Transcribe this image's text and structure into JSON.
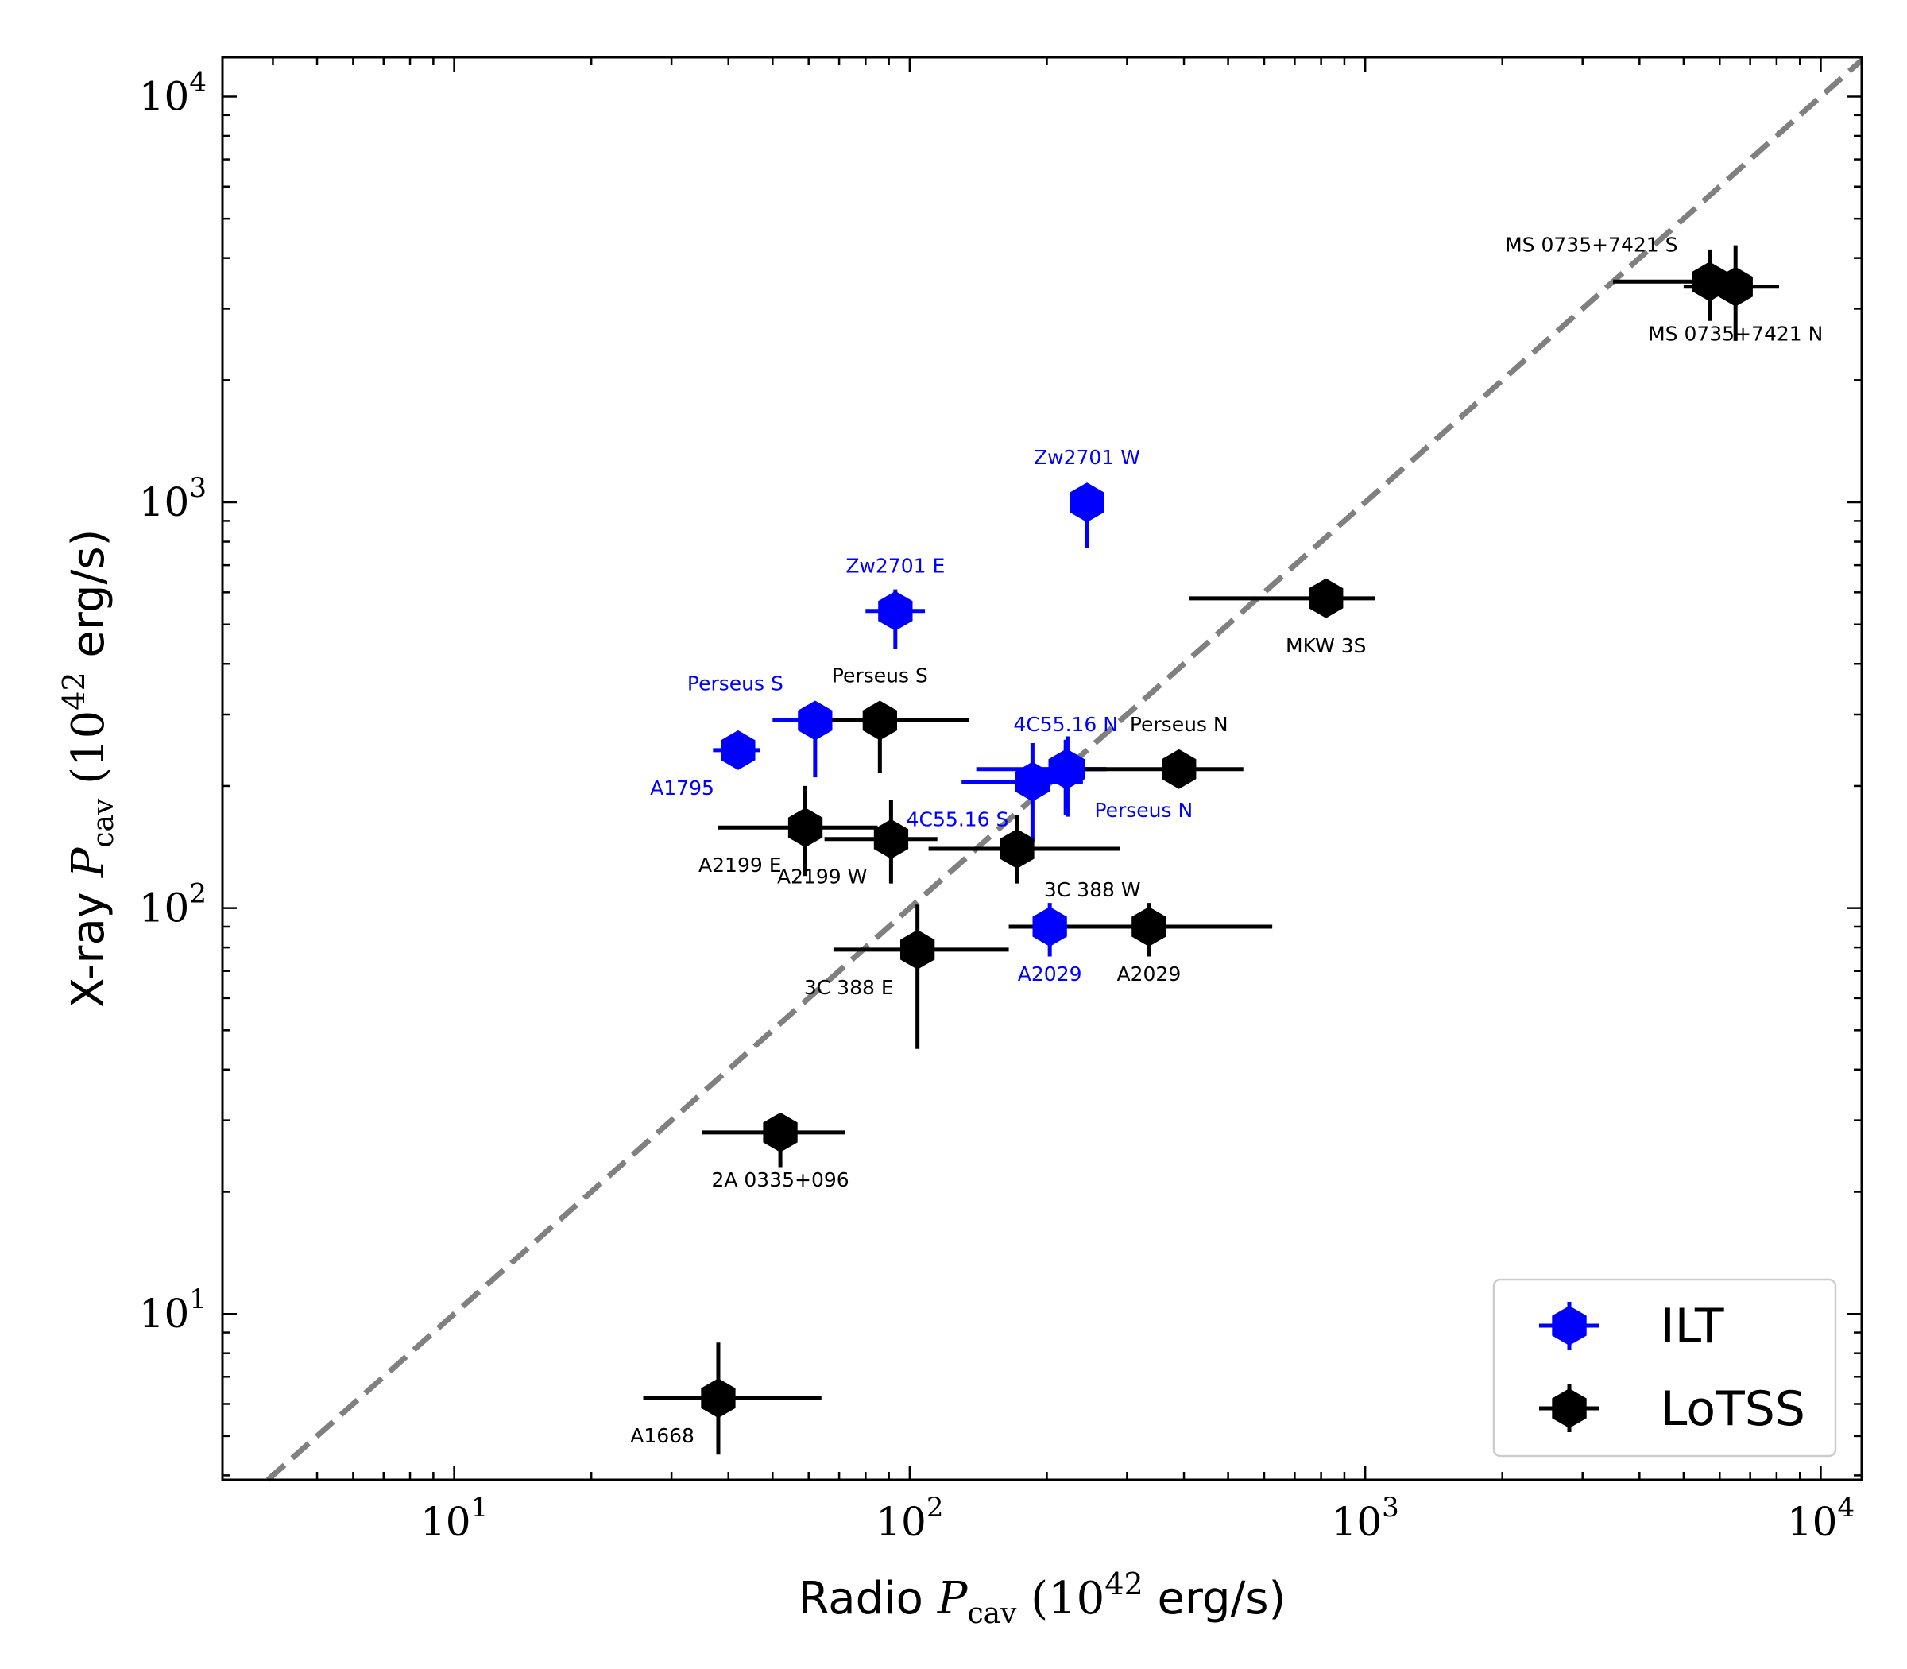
{
  "chart_data": {
    "type": "scatter",
    "xlabel": {
      "prefix": "Radio ",
      "symbol": "P",
      "subscript": "cav",
      "unit_open": " (10",
      "unit_exp": "42",
      "unit_close": " erg/s)"
    },
    "ylabel": {
      "prefix": "X-ray ",
      "symbol": "P",
      "subscript": "cav",
      "unit_open": " (10",
      "unit_exp": "42",
      "unit_close": " erg/s)"
    },
    "x_scale": "log",
    "y_scale": "log",
    "xlim": [
      3.1,
      12300
    ],
    "ylim": [
      3.9,
      12500
    ],
    "x_ticks": [
      {
        "value": 10,
        "base": "10",
        "exp": "1"
      },
      {
        "value": 100,
        "base": "10",
        "exp": "2"
      },
      {
        "value": 1000,
        "base": "10",
        "exp": "3"
      },
      {
        "value": 10000,
        "base": "10",
        "exp": "4"
      }
    ],
    "y_ticks": [
      {
        "value": 10,
        "base": "10",
        "exp": "1"
      },
      {
        "value": 100,
        "base": "10",
        "exp": "2"
      },
      {
        "value": 1000,
        "base": "10",
        "exp": "3"
      },
      {
        "value": 10000,
        "base": "10",
        "exp": "4"
      }
    ],
    "grid": false,
    "reference_line": {
      "style": "dashed",
      "color": "#808080",
      "relation": "y = x"
    },
    "legend": {
      "placement": "bottom-right"
    },
    "series": [
      {
        "name": "ILT",
        "color": "#0000ff",
        "marker": "hexagon",
        "points": [
          {
            "label": "Zw2701 W",
            "x": 245,
            "y": 1000,
            "xerr": [
              225,
              265
            ],
            "yerr": [
              770,
              1110
            ],
            "label_pos": "above"
          },
          {
            "label": "Zw2701 E",
            "x": 93,
            "y": 540,
            "xerr": [
              80,
              108
            ],
            "yerr": [
              435,
              610
            ],
            "label_pos": "above"
          },
          {
            "label": "Perseus S",
            "x": 62,
            "y": 290,
            "xerr": [
              50,
              74
            ],
            "yerr": [
              210,
              310
            ],
            "label_pos": "above-left"
          },
          {
            "label": "A1795",
            "x": 42,
            "y": 245,
            "xerr": [
              37,
              47
            ],
            "yerr": [
              228,
              262
            ],
            "label_pos": "below-left"
          },
          {
            "label": "4C55.16 N",
            "x": 220,
            "y": 220,
            "xerr": [
              140,
              270
            ],
            "yerr": [
              170,
              260
            ],
            "label_pos": "above"
          },
          {
            "label": "4C55.16 S",
            "x": 186,
            "y": 205,
            "xerr": [
              130,
              240
            ],
            "yerr": [
              145,
              255
            ],
            "label_pos": "below-left"
          },
          {
            "label": "Perseus N",
            "x": 222,
            "y": 220,
            "xerr": [
              180,
              270
            ],
            "yerr": [
              168,
              265
            ],
            "label_pos": "below-right"
          },
          {
            "label": "A2029",
            "x": 203,
            "y": 90,
            "xerr": [
              180,
              230
            ],
            "yerr": [
              76,
              103
            ],
            "label_pos": "below"
          }
        ]
      },
      {
        "name": "LoTSS",
        "color": "#000000",
        "marker": "hexagon",
        "points": [
          {
            "label": "MS 0735+7421 S",
            "x": 5700,
            "y": 3500,
            "xerr": [
              3500,
              7000
            ],
            "yerr": [
              2800,
              4200
            ],
            "label_pos": "above-left"
          },
          {
            "label": "MS 0735+7421 N",
            "x": 6500,
            "y": 3400,
            "xerr": [
              5000,
              8100
            ],
            "yerr": [
              2500,
              4300
            ],
            "label_pos": "below"
          },
          {
            "label": "MKW 3S",
            "x": 820,
            "y": 580,
            "xerr": [
              410,
              1050
            ],
            "yerr": [
              550,
              610
            ],
            "label_pos": "below"
          },
          {
            "label": "Perseus S",
            "x": 86,
            "y": 290,
            "xerr": [
              60,
              135
            ],
            "yerr": [
              215,
              305
            ],
            "label_pos": "above"
          },
          {
            "label": "Perseus N",
            "x": 390,
            "y": 220,
            "xerr": [
              230,
              540
            ],
            "yerr": [
              205,
              235
            ],
            "label_pos": "above"
          },
          {
            "label": "A2199 E",
            "x": 59,
            "y": 158,
            "xerr": [
              38,
              85
            ],
            "yerr": [
              120,
              200
            ],
            "label_pos": "below-left"
          },
          {
            "label": "A2199 W",
            "x": 91,
            "y": 148,
            "xerr": [
              65,
              115
            ],
            "yerr": [
              115,
              185
            ],
            "label_pos": "below-left"
          },
          {
            "label": "3C 388 W",
            "x": 172,
            "y": 140,
            "xerr": [
              110,
              290
            ],
            "yerr": [
              115,
              170
            ],
            "label_pos": "below-right"
          },
          {
            "label": "A2029",
            "x": 335,
            "y": 90,
            "xerr": [
              165,
              625
            ],
            "yerr": [
              76,
              103
            ],
            "label_pos": "below"
          },
          {
            "label": "3C 388 E",
            "x": 104,
            "y": 79,
            "xerr": [
              68,
              165
            ],
            "yerr": [
              45,
              102
            ],
            "label_pos": "below-left"
          },
          {
            "label": "2A 0335+096",
            "x": 52,
            "y": 28,
            "xerr": [
              35,
              72
            ],
            "yerr": [
              23,
              30
            ],
            "label_pos": "below"
          },
          {
            "label": "A1668",
            "x": 38,
            "y": 6.2,
            "xerr": [
              26,
              64
            ],
            "yerr": [
              4.5,
              8.5
            ],
            "label_pos": "below-left"
          }
        ]
      }
    ]
  }
}
